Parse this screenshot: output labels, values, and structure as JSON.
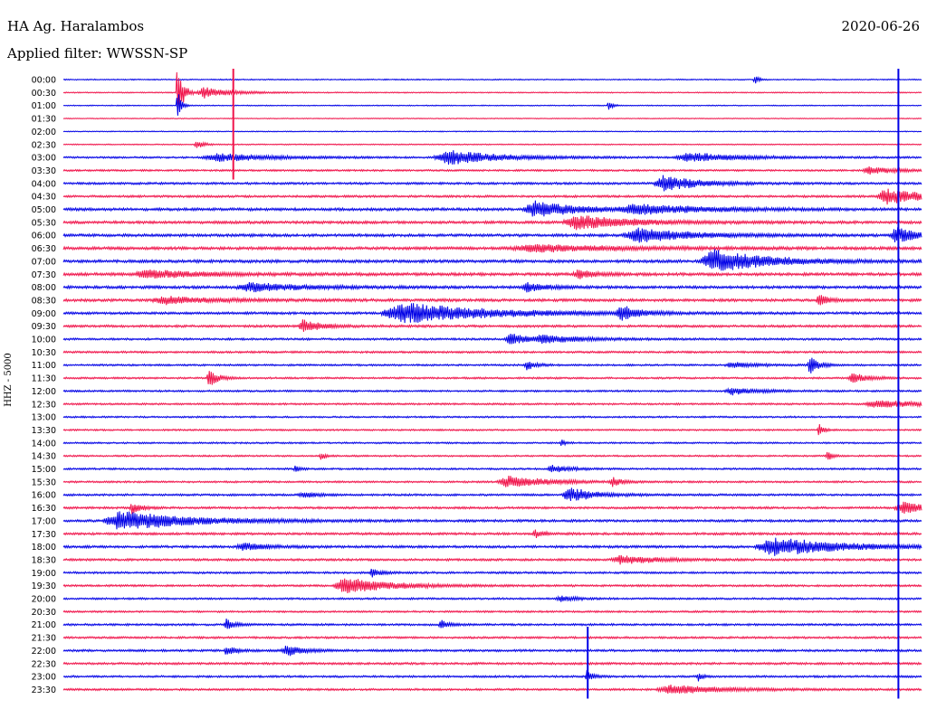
{
  "header": {
    "station": "HA Ag. Haralambos",
    "date": "2020-06-26",
    "filter": "Applied filter: WWSSN-SP"
  },
  "axis": {
    "channel_label": "HHZ - 5000"
  },
  "colors": {
    "blue": "#0000e6",
    "red": "#f0144b",
    "text": "#000000"
  },
  "chart_data": {
    "type": "line",
    "title": "",
    "ylabel": "HHZ - 5000",
    "hours": [
      "00:00",
      "00:30",
      "01:00",
      "01:30",
      "02:00",
      "02:30",
      "03:00",
      "03:30",
      "04:00",
      "04:30",
      "05:00",
      "05:30",
      "06:00",
      "06:30",
      "07:00",
      "07:30",
      "08:00",
      "08:30",
      "09:00",
      "09:30",
      "10:00",
      "10:30",
      "11:00",
      "11:30",
      "12:00",
      "12:30",
      "13:00",
      "13:30",
      "14:00",
      "14:30",
      "15:00",
      "15:30",
      "16:00",
      "16:30",
      "17:00",
      "17:30",
      "18:00",
      "18:30",
      "19:00",
      "19:30",
      "20:00",
      "20:30",
      "21:00",
      "21:30",
      "22:00",
      "22:30",
      "23:00",
      "23:30"
    ],
    "trace_colors": [
      "blue",
      "red"
    ],
    "noise_level": [
      1.2,
      1.2,
      1.0,
      1.0,
      1.0,
      1.2,
      2.0,
      2.0,
      2.4,
      2.4,
      3.0,
      3.0,
      3.0,
      3.2,
      3.2,
      3.2,
      3.0,
      3.0,
      2.6,
      2.6,
      2.2,
      2.2,
      2.0,
      2.0,
      2.0,
      2.0,
      1.8,
      1.8,
      1.8,
      1.8,
      2.0,
      2.0,
      2.2,
      2.4,
      2.6,
      2.6,
      2.6,
      2.4,
      2.2,
      2.2,
      2.0,
      2.0,
      2.2,
      2.2,
      2.4,
      2.4,
      2.2,
      2.2
    ],
    "events": [
      {
        "row": 1,
        "t": 0.133,
        "amp": 70,
        "dur": 0.006
      },
      {
        "row": 1,
        "t": 0.165,
        "amp": 12,
        "dur": 0.03
      },
      {
        "row": 2,
        "t": 0.133,
        "amp": 40,
        "dur": 0.004
      },
      {
        "row": 2,
        "t": 0.635,
        "amp": 10,
        "dur": 0.005
      },
      {
        "row": 0,
        "t": 0.805,
        "amp": 10,
        "dur": 0.005
      },
      {
        "row": 5,
        "t": 0.155,
        "amp": 10,
        "dur": 0.008
      },
      {
        "row": 6,
        "t": 0.18,
        "amp": 9,
        "dur": 0.06
      },
      {
        "row": 6,
        "t": 0.45,
        "amp": 16,
        "dur": 0.06
      },
      {
        "row": 6,
        "t": 0.73,
        "amp": 10,
        "dur": 0.06
      },
      {
        "row": 7,
        "t": 0.94,
        "amp": 8,
        "dur": 0.03
      },
      {
        "row": 8,
        "t": 0.7,
        "amp": 18,
        "dur": 0.04
      },
      {
        "row": 9,
        "t": 0.96,
        "amp": 18,
        "dur": 0.04
      },
      {
        "row": 10,
        "t": 0.55,
        "amp": 18,
        "dur": 0.05
      },
      {
        "row": 10,
        "t": 0.67,
        "amp": 10,
        "dur": 0.08
      },
      {
        "row": 11,
        "t": 0.6,
        "amp": 16,
        "dur": 0.06
      },
      {
        "row": 12,
        "t": 0.67,
        "amp": 16,
        "dur": 0.06
      },
      {
        "row": 12,
        "t": 0.97,
        "amp": 20,
        "dur": 0.02
      },
      {
        "row": 13,
        "t": 0.55,
        "amp": 8,
        "dur": 0.1
      },
      {
        "row": 14,
        "t": 0.76,
        "amp": 26,
        "dur": 0.06
      },
      {
        "row": 15,
        "t": 0.1,
        "amp": 10,
        "dur": 0.06
      },
      {
        "row": 15,
        "t": 0.6,
        "amp": 10,
        "dur": 0.02
      },
      {
        "row": 16,
        "t": 0.22,
        "amp": 10,
        "dur": 0.06
      },
      {
        "row": 16,
        "t": 0.54,
        "amp": 12,
        "dur": 0.02
      },
      {
        "row": 17,
        "t": 0.12,
        "amp": 8,
        "dur": 0.06
      },
      {
        "row": 17,
        "t": 0.88,
        "amp": 14,
        "dur": 0.01
      },
      {
        "row": 18,
        "t": 0.4,
        "amp": 22,
        "dur": 0.1
      },
      {
        "row": 18,
        "t": 0.65,
        "amp": 16,
        "dur": 0.02
      },
      {
        "row": 19,
        "t": 0.28,
        "amp": 14,
        "dur": 0.02
      },
      {
        "row": 20,
        "t": 0.52,
        "amp": 14,
        "dur": 0.02
      },
      {
        "row": 20,
        "t": 0.56,
        "amp": 8,
        "dur": 0.05
      },
      {
        "row": 22,
        "t": 0.54,
        "amp": 12,
        "dur": 0.01
      },
      {
        "row": 22,
        "t": 0.87,
        "amp": 20,
        "dur": 0.01
      },
      {
        "row": 22,
        "t": 0.78,
        "amp": 6,
        "dur": 0.03
      },
      {
        "row": 23,
        "t": 0.17,
        "amp": 20,
        "dur": 0.01
      },
      {
        "row": 23,
        "t": 0.92,
        "amp": 10,
        "dur": 0.02
      },
      {
        "row": 24,
        "t": 0.78,
        "amp": 8,
        "dur": 0.03
      },
      {
        "row": 25,
        "t": 0.95,
        "amp": 8,
        "dur": 0.06
      },
      {
        "row": 27,
        "t": 0.88,
        "amp": 16,
        "dur": 0.005
      },
      {
        "row": 28,
        "t": 0.58,
        "amp": 8,
        "dur": 0.005
      },
      {
        "row": 29,
        "t": 0.3,
        "amp": 10,
        "dur": 0.005
      },
      {
        "row": 29,
        "t": 0.89,
        "amp": 12,
        "dur": 0.005
      },
      {
        "row": 30,
        "t": 0.27,
        "amp": 8,
        "dur": 0.005
      },
      {
        "row": 30,
        "t": 0.57,
        "amp": 8,
        "dur": 0.02
      },
      {
        "row": 31,
        "t": 0.52,
        "amp": 12,
        "dur": 0.05
      },
      {
        "row": 31,
        "t": 0.64,
        "amp": 10,
        "dur": 0.01
      },
      {
        "row": 32,
        "t": 0.59,
        "amp": 16,
        "dur": 0.03
      },
      {
        "row": 32,
        "t": 0.28,
        "amp": 6,
        "dur": 0.02
      },
      {
        "row": 33,
        "t": 0.08,
        "amp": 12,
        "dur": 0.01
      },
      {
        "row": 33,
        "t": 0.98,
        "amp": 12,
        "dur": 0.04
      },
      {
        "row": 34,
        "t": 0.07,
        "amp": 22,
        "dur": 0.08
      },
      {
        "row": 35,
        "t": 0.55,
        "amp": 8,
        "dur": 0.01
      },
      {
        "row": 36,
        "t": 0.21,
        "amp": 8,
        "dur": 0.03
      },
      {
        "row": 36,
        "t": 0.83,
        "amp": 20,
        "dur": 0.08
      },
      {
        "row": 37,
        "t": 0.65,
        "amp": 10,
        "dur": 0.04
      },
      {
        "row": 38,
        "t": 0.36,
        "amp": 10,
        "dur": 0.01
      },
      {
        "row": 39,
        "t": 0.33,
        "amp": 18,
        "dur": 0.05
      },
      {
        "row": 40,
        "t": 0.58,
        "amp": 6,
        "dur": 0.02
      },
      {
        "row": 42,
        "t": 0.19,
        "amp": 12,
        "dur": 0.01
      },
      {
        "row": 42,
        "t": 0.44,
        "amp": 10,
        "dur": 0.01
      },
      {
        "row": 44,
        "t": 0.19,
        "amp": 10,
        "dur": 0.01
      },
      {
        "row": 44,
        "t": 0.26,
        "amp": 12,
        "dur": 0.02
      },
      {
        "row": 46,
        "t": 0.61,
        "amp": 16,
        "dur": 0.006
      },
      {
        "row": 46,
        "t": 0.74,
        "amp": 10,
        "dur": 0.005
      },
      {
        "row": 47,
        "t": 0.71,
        "amp": 10,
        "dur": 0.06
      }
    ],
    "spikes": [
      {
        "t": 0.198,
        "from_row": 0,
        "to_row": 7,
        "color": "red"
      },
      {
        "t": 0.973,
        "from_row": 0,
        "to_row": 47,
        "color": "blue"
      },
      {
        "t": 0.611,
        "from_row": 43,
        "to_row": 47,
        "color": "blue"
      }
    ]
  }
}
